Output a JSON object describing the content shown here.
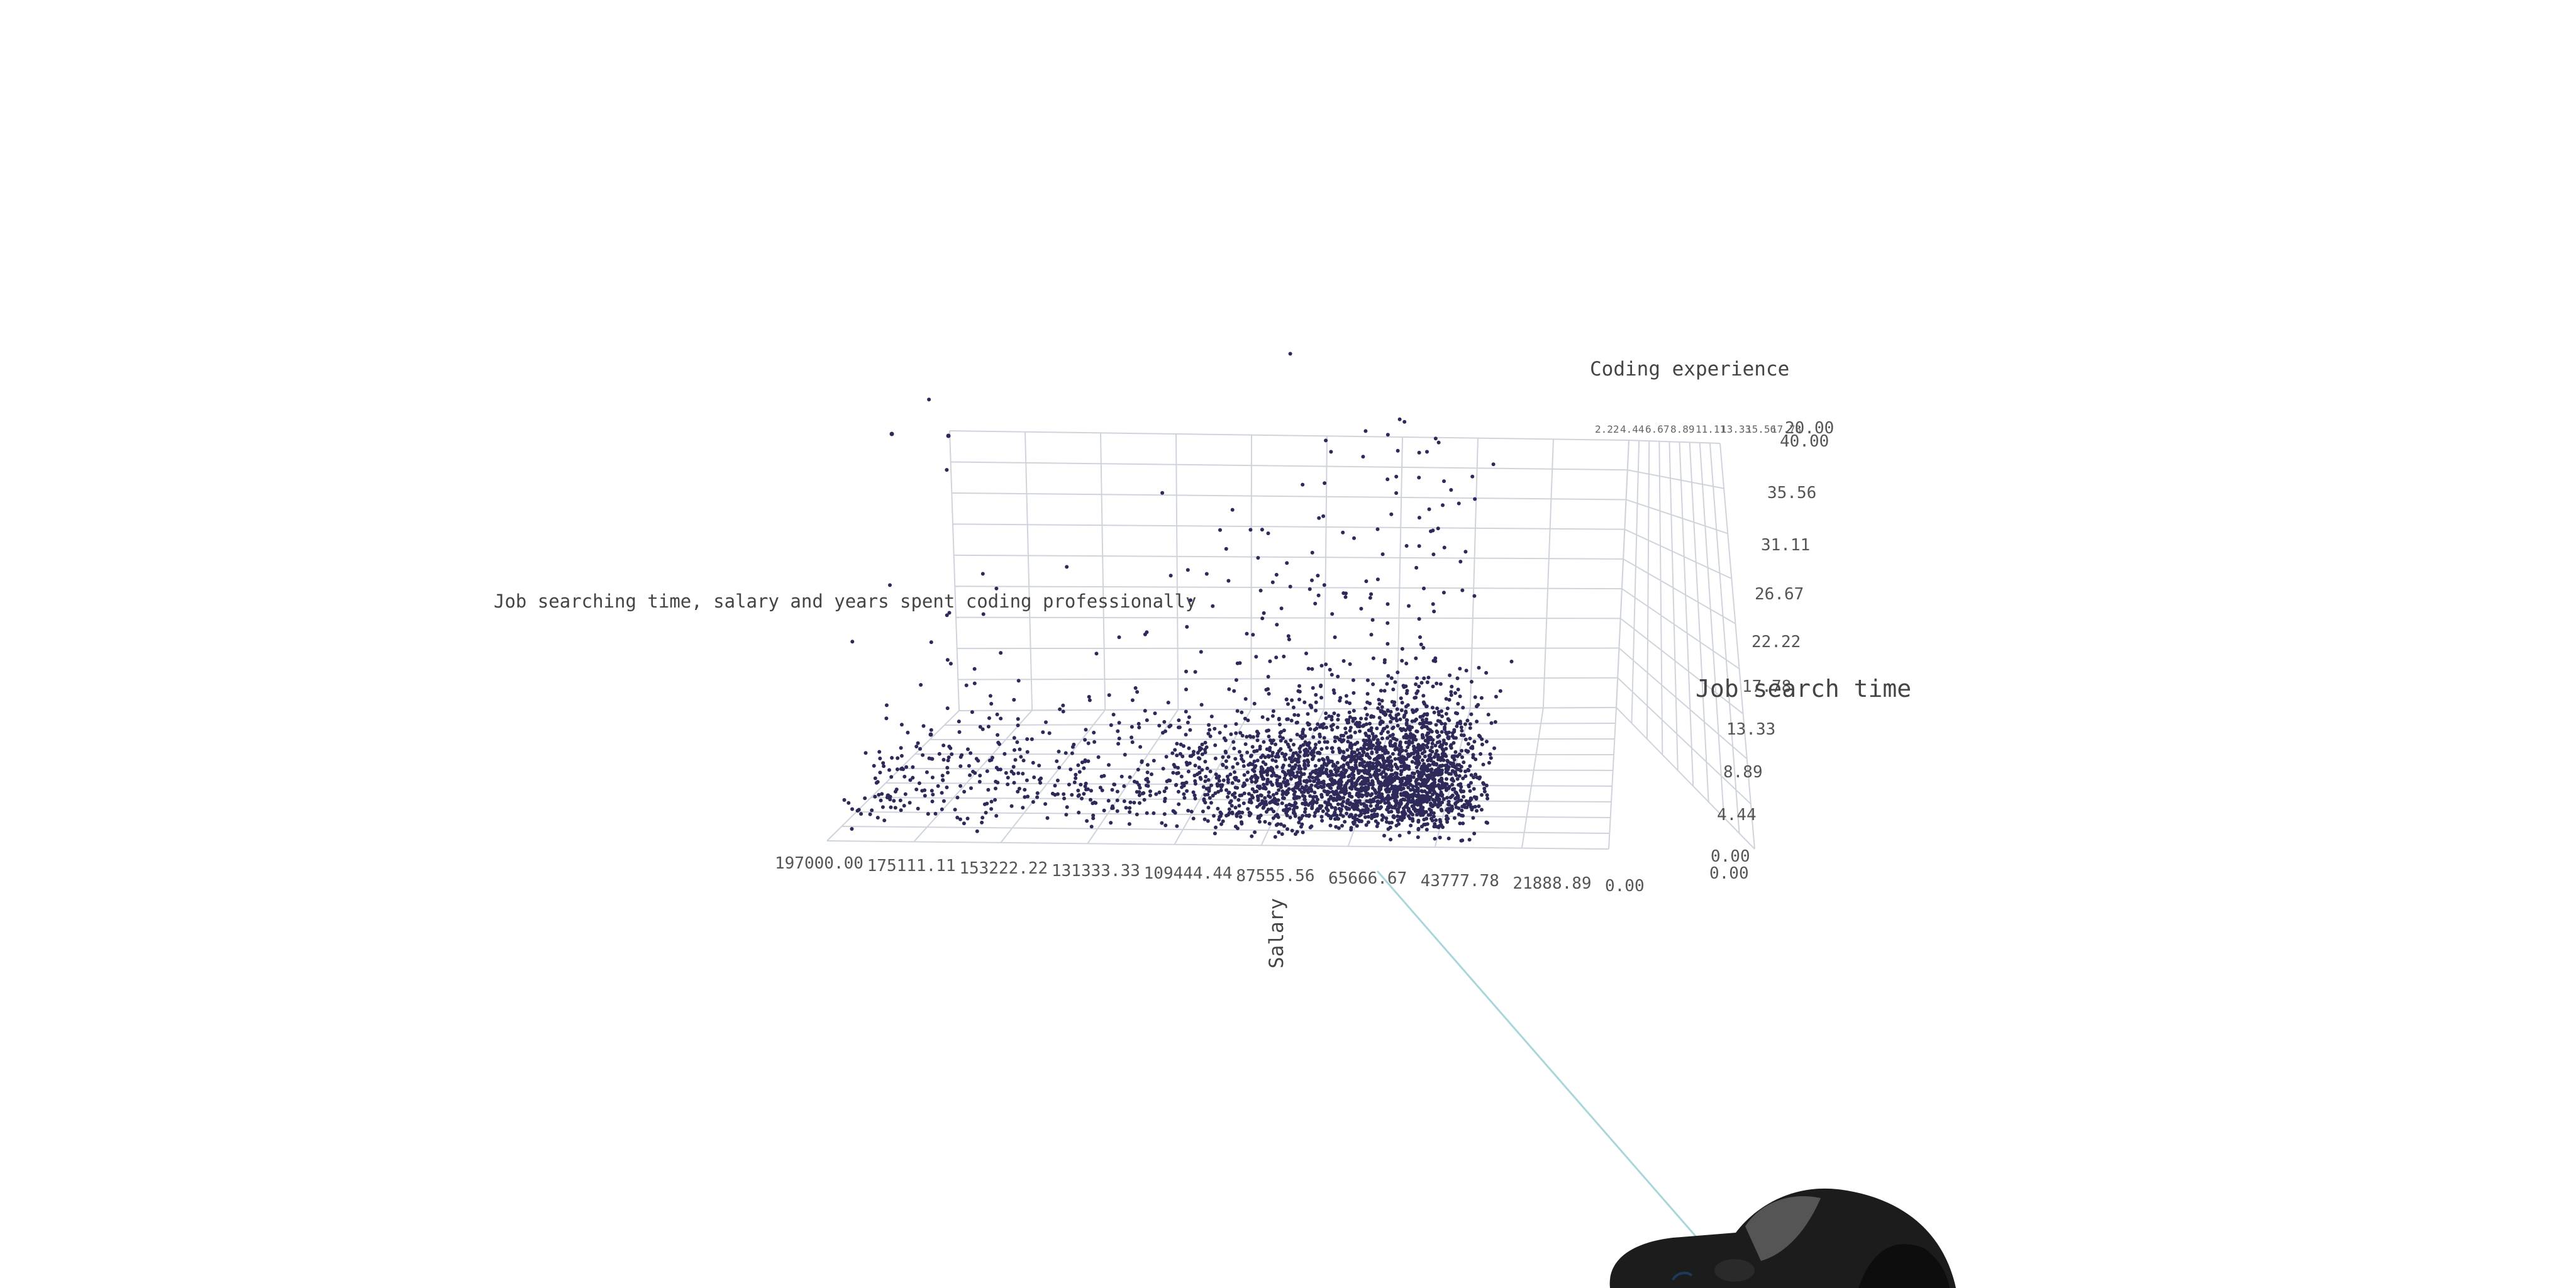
{
  "chart_data": {
    "type": "scatter",
    "projection": "3d",
    "title": "Job searching time, salary and years spent coding professionally",
    "axes": {
      "salary": {
        "label": "Salary",
        "range": [
          0,
          197000
        ],
        "ticks": [
          "197000.00",
          "175111.11",
          "153222.22",
          "131333.33",
          "109444.44",
          "87555.56",
          "65666.67",
          "43777.78",
          "21888.89",
          "0.00"
        ]
      },
      "job_search_time": {
        "label": "Job search time",
        "range": [
          0,
          40
        ],
        "ticks": [
          "0.00",
          "4.44",
          "8.89",
          "13.33",
          "17.78",
          "22.22",
          "26.67",
          "31.11",
          "35.56",
          "40.00"
        ]
      },
      "coding_experience": {
        "label": "Coding experience",
        "range": [
          0,
          20
        ],
        "ticks": [
          "0.00",
          "2.22",
          "4.44",
          "6.67",
          "8.89",
          "11.11",
          "13.33",
          "15.56",
          "17.78",
          "20.00"
        ],
        "end_label": "20.00"
      }
    },
    "point_color": "#2d2a5a",
    "grid_color": "#cfd4dc",
    "grid": true,
    "legend": "none",
    "point_count_approx": 3000,
    "distribution_note": "dense cluster at salary 40000-90000 with job search time 0-15; sparse high-salary points and a row of points at the 40.00 ceiling"
  },
  "decor": {
    "pointer_line_color": "#a9d6d8",
    "controller_name": "vr-controller-icon"
  }
}
